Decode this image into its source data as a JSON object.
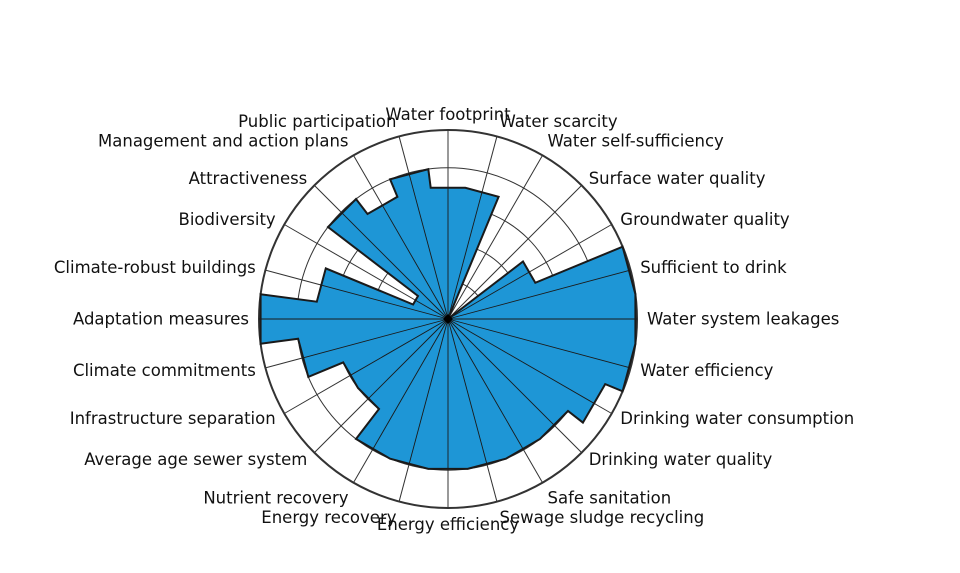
{
  "chart_data": {
    "type": "radar",
    "title": "",
    "max_value": 10,
    "rings": 5,
    "labels_clockwise_from_top": [
      "Water footprint",
      "Water scarcity",
      "Water self-sufficiency",
      "Surface water quality",
      "Groundwater quality",
      "Sufficient to drink",
      "Water system leakages",
      "Water efficiency",
      "Drinking water consumption",
      "Drinking water quality",
      "Safe sanitation",
      "Sewage sludge recycling",
      "Energy efficiency",
      "Energy recovery",
      "Nutrient recovery",
      "Average age sewer system",
      "Infrastructure separation",
      "Climate commitments",
      "Adaptation measures",
      "Climate-robust buildings",
      "Biodiversity",
      "Attractiveness",
      "Management and action plans",
      "Public participation"
    ],
    "values": [
      7,
      7,
      0,
      0,
      5,
      10,
      10,
      10,
      9,
      8,
      8,
      8,
      8,
      8,
      8,
      6,
      6,
      8,
      10,
      7,
      2,
      8,
      7,
      8
    ],
    "fill_color": "#1e96d6",
    "outline_color": "#1a1a1a",
    "grid_color": "#333333"
  }
}
